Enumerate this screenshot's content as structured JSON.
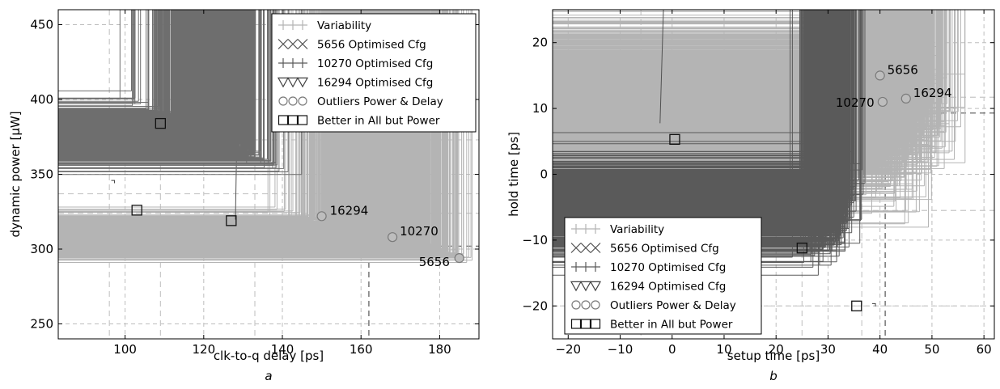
{
  "chart_data": [
    {
      "type": "scatter",
      "panel_label": "a",
      "xlabel": "clk-to-q delay [ps]",
      "ylabel": "dynamic power [μW]",
      "xlim": [
        83,
        190
      ],
      "ylim": [
        240,
        460
      ],
      "xticks": [
        100,
        120,
        140,
        160,
        180
      ],
      "yticks": [
        250,
        300,
        350,
        400,
        450
      ],
      "grid": true,
      "legend": {
        "placement": "top-right",
        "entries": [
          "Variability",
          "5656 Optimised Cfg",
          "10270 Optimised Cfg",
          "16294 Optimised Cfg",
          "Outliers Power & Delay",
          "Better in All but Power"
        ]
      },
      "series": [
        {
          "name": "Variability",
          "marker": "plus",
          "color": "#b4b4b4",
          "clouds": [
            {
              "center": [
                165,
                308
              ],
              "sx": 9,
              "sy": 6,
              "rho": -0.93,
              "n": 1500
            }
          ]
        },
        {
          "name": "5656 Optimised Cfg",
          "marker": "x",
          "color": "#505050",
          "clouds": [
            {
              "center": [
                132,
                322
              ],
              "sx": 6.5,
              "sy": 11,
              "rho": -0.5,
              "n": 1400
            }
          ]
        },
        {
          "name": "10270 Optimised Cfg",
          "marker": "plus",
          "color": "#6e6e6e",
          "clouds": [
            {
              "center": [
                121,
                376
              ],
              "sx": 6.5,
              "sy": 8,
              "rho": -0.96,
              "n": 1100
            }
          ]
        },
        {
          "name": "16294 Optimised Cfg",
          "marker": "triangle",
          "color": "#404040",
          "clouds": [
            {
              "center": [
                97,
                342
              ],
              "sx": 3.8,
              "sy": 6.5,
              "rho": -0.7,
              "n": 1100
            }
          ]
        }
      ],
      "outliers": [
        {
          "label": "16294",
          "x": 150,
          "y": 322
        },
        {
          "label": "10270",
          "x": 168,
          "y": 308
        },
        {
          "label": "5656",
          "x": 185,
          "y": 294
        }
      ],
      "better_in_all_but_power": [
        {
          "x": 109,
          "y": 384
        },
        {
          "x": 127,
          "y": 319
        },
        {
          "x": 103,
          "y": 326
        }
      ],
      "reference_lines": {
        "vertical": [
          {
            "x": 96,
            "color": "#c8c8c8"
          },
          {
            "x": 109,
            "color": "#c8c8c8"
          },
          {
            "x": 133,
            "color": "#c8c8c8"
          },
          {
            "x": 162,
            "color": "#555555"
          }
        ],
        "horizontal": [
          {
            "y": 373,
            "color": "#c8c8c8"
          },
          {
            "y": 337,
            "color": "#c8c8c8"
          },
          {
            "y": 324,
            "color": "#c8c8c8"
          },
          {
            "y": 302,
            "color": "#555555"
          }
        ]
      }
    },
    {
      "type": "scatter",
      "panel_label": "b",
      "xlabel": "setup time [ps]",
      "ylabel": "hold time [ps]",
      "xlim": [
        -23,
        62
      ],
      "ylim": [
        -25,
        25
      ],
      "xticks": [
        -20,
        -10,
        0,
        10,
        20,
        30,
        40,
        50,
        60
      ],
      "yticks": [
        -20,
        -10,
        0,
        10,
        20
      ],
      "grid": true,
      "legend": {
        "placement": "bottom-left",
        "entries": [
          "Variability",
          "5656 Optimised Cfg",
          "10270 Optimised Cfg",
          "16294 Optimised Cfg",
          "Outliers Power & Delay",
          "Better in All but Power"
        ]
      },
      "series": [
        {
          "name": "Variability",
          "marker": "plus",
          "color": "#b4b4b4",
          "clouds": [
            {
              "center": [
                41,
                10
              ],
              "sx": 5,
              "sy": 5.5,
              "rho": -0.1,
              "n": 1800
            }
          ]
        },
        {
          "name": "5656 Optimised Cfg",
          "marker": "x",
          "color": "#505050",
          "clouds": [
            {
              "center": [
                -7,
                13
              ],
              "sx": 5.5,
              "sy": 5,
              "rho": -0.995,
              "n": 1200
            }
          ]
        },
        {
          "name": "10270 Optimised Cfg",
          "marker": "plus",
          "color": "#5a5a5a",
          "clouds": [
            {
              "center": [
                30.5,
                -5
              ],
              "sx": 2.3,
              "sy": 3.2,
              "rho": 0.2,
              "n": 1000
            }
          ]
        },
        {
          "name": "16294 Optimised Cfg",
          "marker": "triangle",
          "color": "#404040",
          "clouds": [
            {
              "center": [
                37.5,
                -20
              ],
              "sx": 3.2,
              "sy": 0.08,
              "rho": 0,
              "n": 200
            }
          ]
        }
      ],
      "outliers": [
        {
          "label": "5656",
          "x": 40,
          "y": 15
        },
        {
          "label": "16294",
          "x": 45,
          "y": 11.5
        },
        {
          "label": "10270",
          "x": 40.5,
          "y": 11
        }
      ],
      "better_in_all_but_power": [
        {
          "x": 0.5,
          "y": 5.3
        },
        {
          "x": 25,
          "y": -11.2
        },
        {
          "x": 35.5,
          "y": -20
        }
      ],
      "reference_lines": {
        "vertical": [
          {
            "x": -6,
            "color": "#c8c8c8"
          },
          {
            "x": 25,
            "color": "#c8c8c8"
          },
          {
            "x": 36.5,
            "color": "#c8c8c8"
          },
          {
            "x": 41,
            "color": "#555555"
          }
        ],
        "horizontal": [
          {
            "y": 11.7,
            "color": "#c8c8c8"
          },
          {
            "y": -5.5,
            "color": "#c8c8c8"
          },
          {
            "y": -20,
            "color": "#c8c8c8"
          },
          {
            "y": 9.3,
            "color": "#555555"
          }
        ]
      }
    }
  ]
}
